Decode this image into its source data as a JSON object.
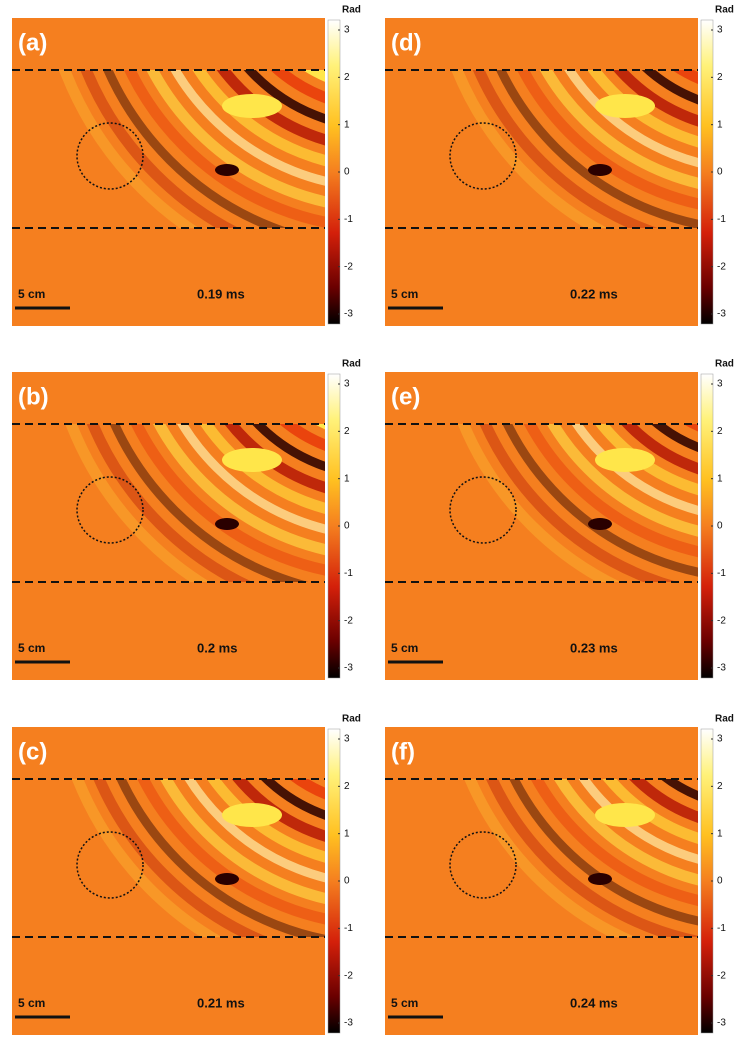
{
  "colorbar": {
    "unit": "Rad",
    "ticks": [
      3,
      2,
      1,
      0,
      -1,
      -2,
      -3
    ]
  },
  "scale_bar": "5 cm",
  "panels": [
    {
      "label": "(a)",
      "time": "0.19 ms"
    },
    {
      "label": "(b)",
      "time": "0.2 ms"
    },
    {
      "label": "(c)",
      "time": "0.21 ms"
    },
    {
      "label": "(d)",
      "time": "0.22 ms"
    },
    {
      "label": "(e)",
      "time": "0.23 ms"
    },
    {
      "label": "(f)",
      "time": "0.24 ms"
    }
  ]
}
